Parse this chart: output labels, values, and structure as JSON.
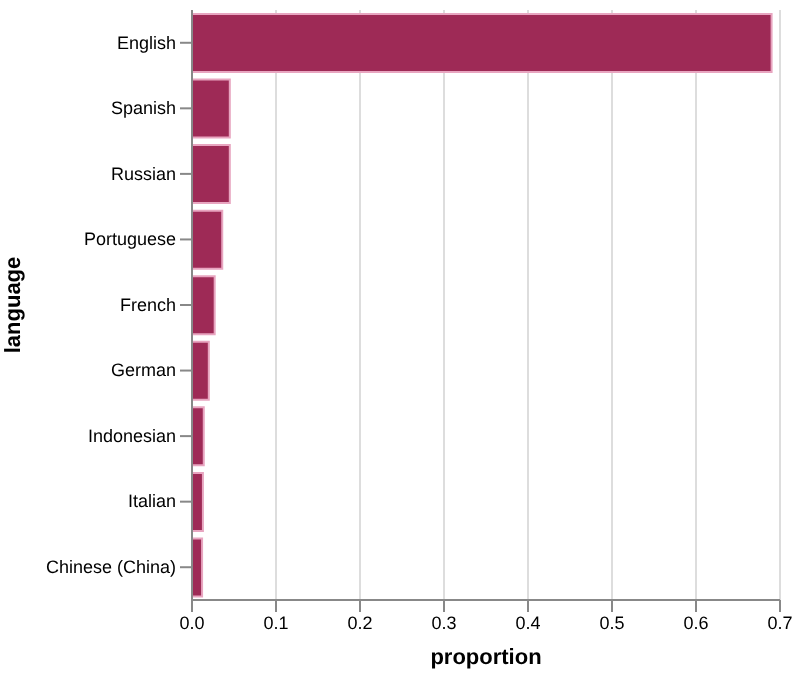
{
  "chart_data": {
    "type": "bar",
    "orientation": "horizontal",
    "xlabel": "proportion",
    "ylabel": "language",
    "categories": [
      "English",
      "Spanish",
      "Russian",
      "Portuguese",
      "French",
      "German",
      "Indonesian",
      "Italian",
      "Chinese (China)"
    ],
    "values": [
      0.69,
      0.045,
      0.045,
      0.036,
      0.027,
      0.02,
      0.014,
      0.013,
      0.012
    ],
    "color": "#9e2a56",
    "xlim": [
      0,
      0.7
    ],
    "xticks": [
      {
        "value": 0,
        "label": "0.0"
      },
      0.1,
      0.2,
      0.3,
      0.4,
      0.5,
      0.6,
      0.7
    ],
    "grid": "x"
  }
}
